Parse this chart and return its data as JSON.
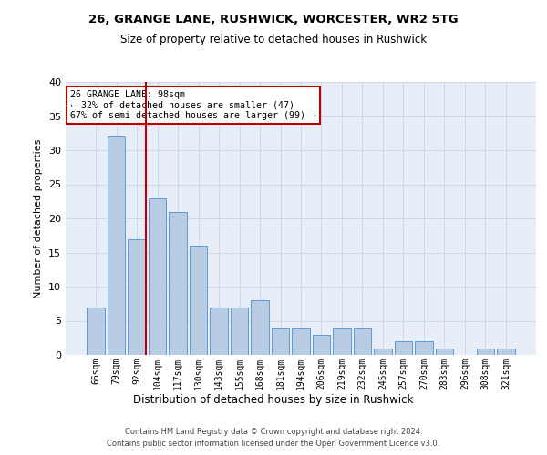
{
  "title_line1": "26, GRANGE LANE, RUSHWICK, WORCESTER, WR2 5TG",
  "title_line2": "Size of property relative to detached houses in Rushwick",
  "xlabel": "Distribution of detached houses by size in Rushwick",
  "ylabel": "Number of detached properties",
  "bar_labels": [
    "66sqm",
    "79sqm",
    "92sqm",
    "104sqm",
    "117sqm",
    "130sqm",
    "143sqm",
    "155sqm",
    "168sqm",
    "181sqm",
    "194sqm",
    "206sqm",
    "219sqm",
    "232sqm",
    "245sqm",
    "257sqm",
    "270sqm",
    "283sqm",
    "296sqm",
    "308sqm",
    "321sqm"
  ],
  "bar_values": [
    7,
    32,
    17,
    23,
    21,
    16,
    7,
    7,
    8,
    4,
    4,
    3,
    4,
    4,
    1,
    2,
    2,
    1,
    0,
    1,
    1
  ],
  "bar_color": "#b8cce4",
  "bar_edgecolor": "#5b9bd5",
  "subject_bar_index": 2,
  "vline_color": "#c00000",
  "annotation_title": "26 GRANGE LANE: 98sqm",
  "annotation_line1": "← 32% of detached houses are smaller (47)",
  "annotation_line2": "67% of semi-detached houses are larger (99) →",
  "annotation_box_color": "#ffffff",
  "annotation_box_edgecolor": "#c00000",
  "ylim": [
    0,
    40
  ],
  "yticks": [
    0,
    5,
    10,
    15,
    20,
    25,
    30,
    35,
    40
  ],
  "grid_color": "#d0d8e8",
  "background_color": "#e8eef8",
  "footer_line1": "Contains HM Land Registry data © Crown copyright and database right 2024.",
  "footer_line2": "Contains public sector information licensed under the Open Government Licence v3.0."
}
